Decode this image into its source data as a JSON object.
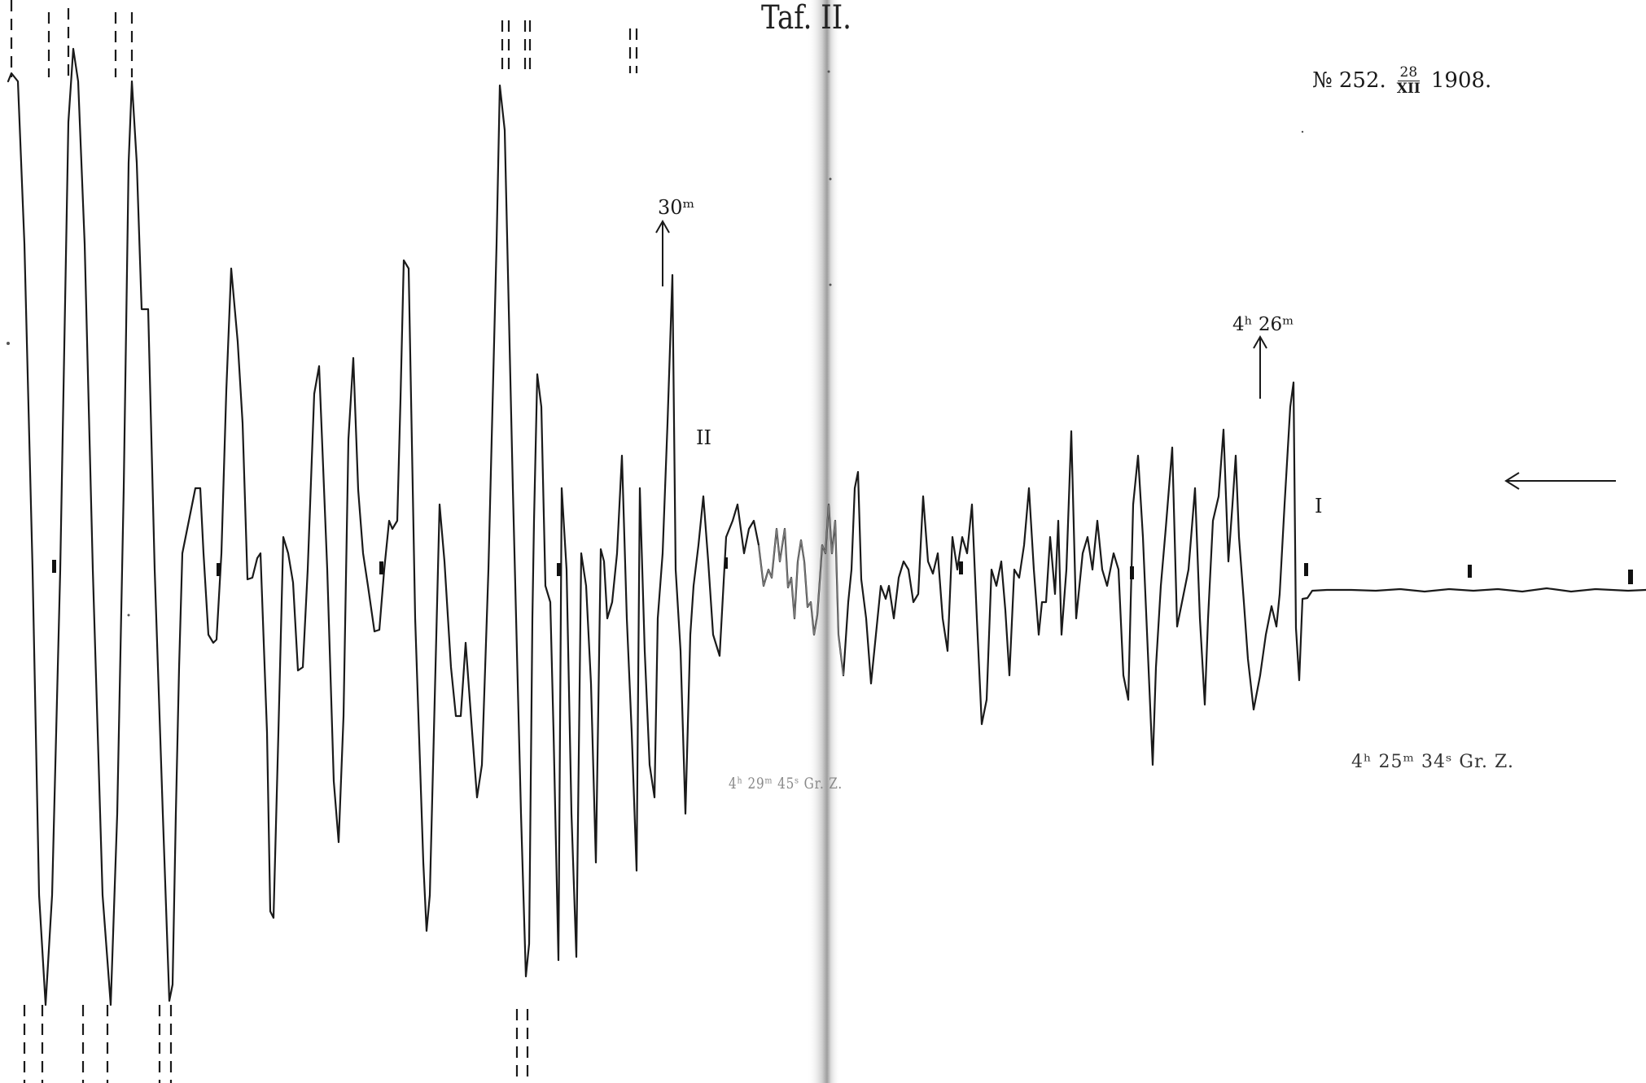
{
  "plate": {
    "label": "Taf. II.",
    "record_prefix": "№ 252.",
    "record_fraction_top": "28",
    "record_fraction_bottom": "XII",
    "record_year": "1908."
  },
  "annotations": {
    "minute_mark_30": "30ᵐ",
    "time_mark_426": "4ʰ 26ᵐ",
    "phase_II": "II",
    "phase_I": "I",
    "time_start": "4ʰ 25ᵐ 34ˢ Gr. Z.",
    "time_later": "4ʰ 29ᵐ 45ˢ Gr. Z."
  },
  "colors": {
    "trace": "#1a1a1a",
    "faint_trace": "#666666",
    "page": "#ffffff",
    "fold_shadow": "#bdbdbd"
  }
}
